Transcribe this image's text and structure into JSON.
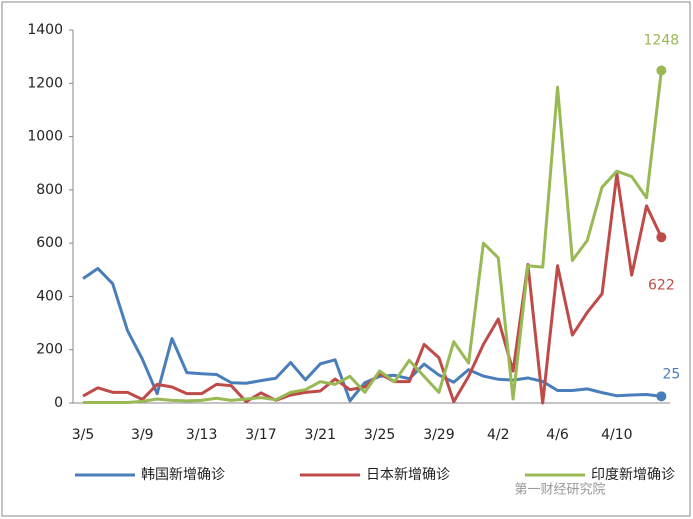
{
  "chart_data": {
    "type": "line",
    "categories": [
      "3/5",
      null,
      null,
      null,
      "3/9",
      null,
      null,
      null,
      "3/13",
      null,
      null,
      null,
      "3/17",
      null,
      null,
      null,
      "3/21",
      null,
      null,
      null,
      "3/25",
      null,
      null,
      null,
      "3/29",
      null,
      null,
      null,
      "4/2",
      null,
      null,
      null,
      "4/6",
      null,
      null,
      null,
      "4/10",
      null,
      null,
      null
    ],
    "series": [
      {
        "name": "韩国新增确诊",
        "color": "#4a7ebb",
        "values": [
          467,
          505,
          448,
          272,
          165,
          35,
          242,
          114,
          110,
          107,
          76,
          74,
          84,
          93,
          152,
          87,
          147,
          162,
          8,
          76,
          100,
          104,
          91,
          146,
          105,
          78,
          125,
          101,
          89,
          86,
          94,
          81,
          47,
          47,
          53,
          39,
          27,
          30,
          32,
          25
        ]
      },
      {
        "name": "日本新增确诊",
        "color": "#be4b48",
        "values": [
          26,
          57,
          40,
          40,
          13,
          70,
          60,
          35,
          35,
          70,
          65,
          5,
          38,
          10,
          30,
          40,
          45,
          90,
          50,
          60,
          110,
          80,
          80,
          220,
          170,
          5,
          100,
          220,
          315,
          120,
          520,
          0,
          515,
          255,
          340,
          410,
          860,
          480,
          740,
          622
        ]
      },
      {
        "name": "印度新增确诊",
        "color": "#98b954",
        "values": [
          2,
          2,
          2,
          2,
          6,
          15,
          10,
          8,
          10,
          18,
          10,
          15,
          20,
          12,
          40,
          50,
          80,
          70,
          100,
          40,
          120,
          80,
          160,
          100,
          40,
          230,
          150,
          600,
          545,
          15,
          515,
          510,
          1185,
          535,
          610,
          810,
          870,
          850,
          770,
          1248
        ]
      }
    ],
    "ylim": [
      0,
      1400
    ],
    "yticks": [
      0,
      200,
      400,
      600,
      800,
      1000,
      1200,
      1400
    ],
    "watermark": "第一财经研究院"
  }
}
